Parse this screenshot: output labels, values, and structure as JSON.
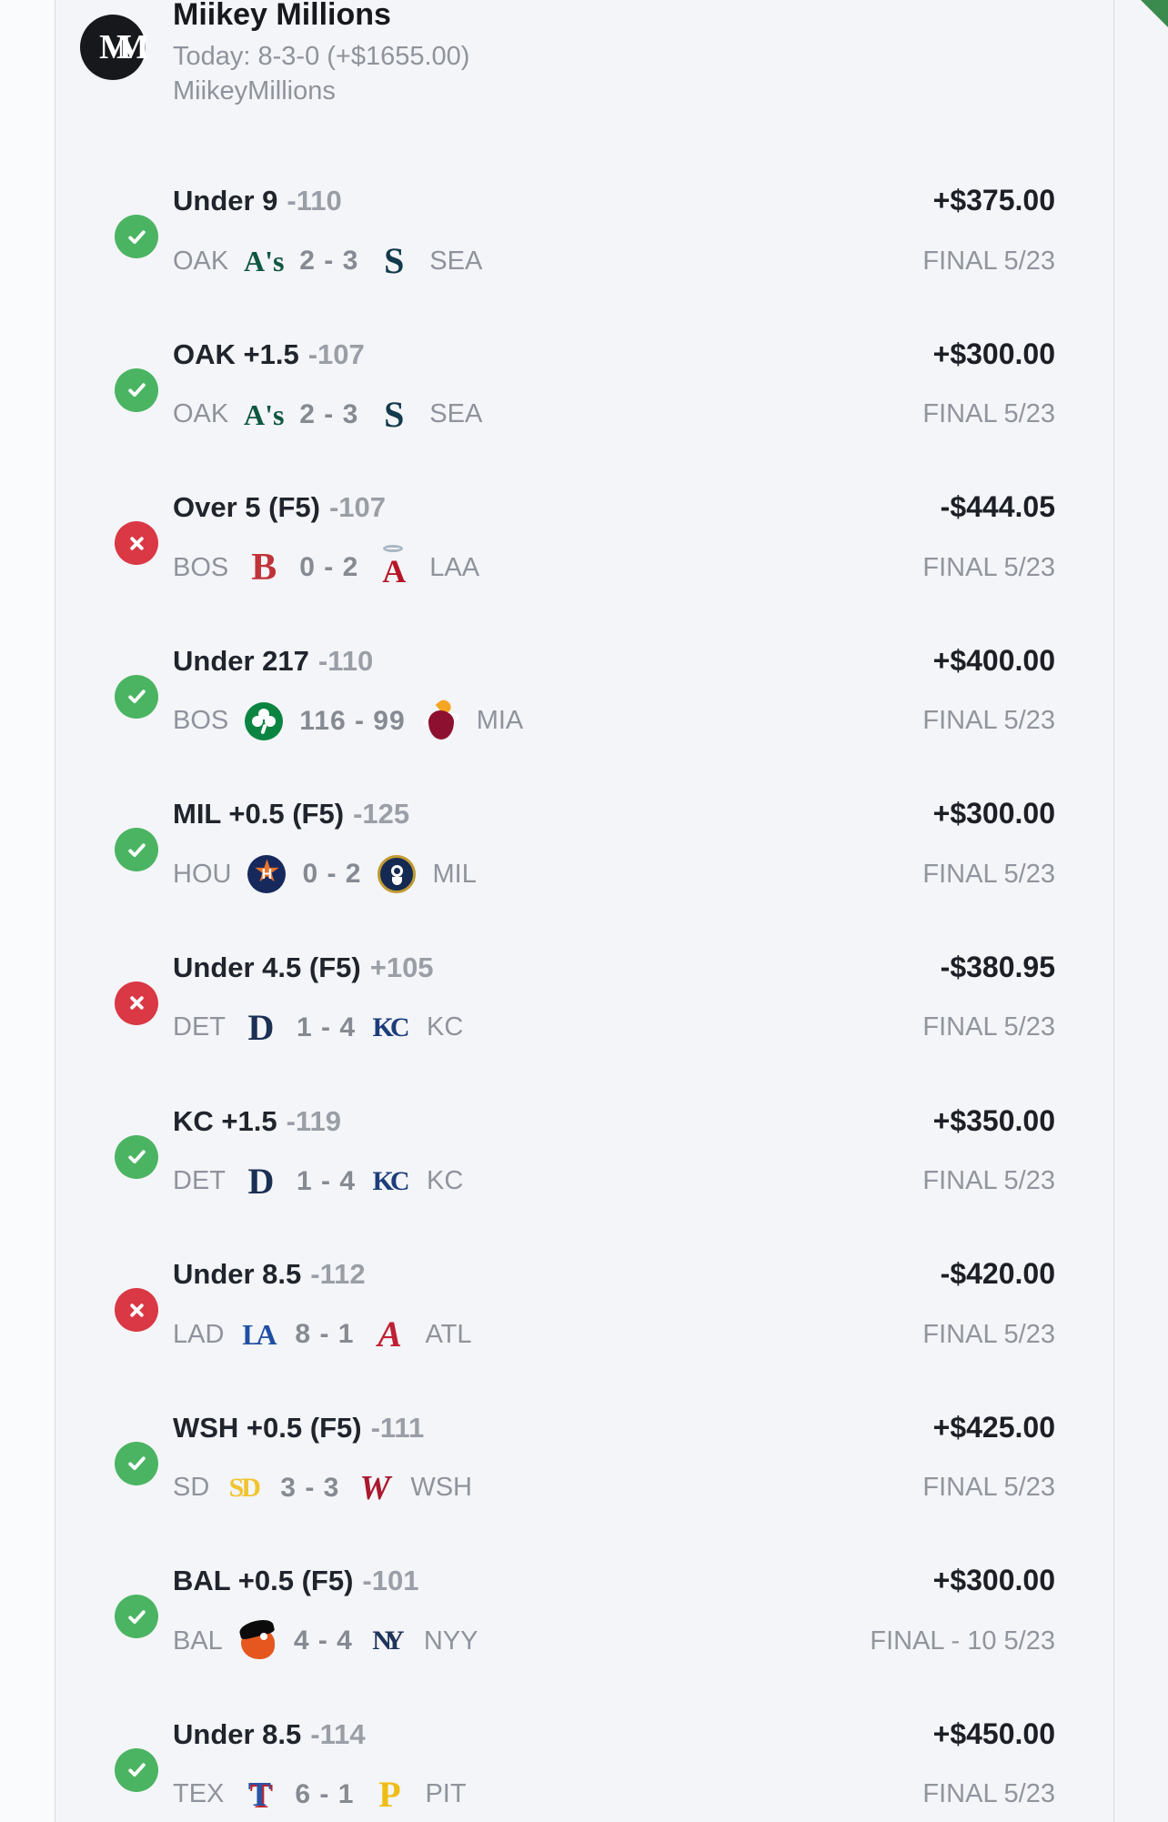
{
  "header": {
    "name": "Miikey Millions",
    "record_line": "Today: 8-3-0 (+$1655.00)",
    "username": "MiikeyMillions",
    "avatar_monogram": "MM"
  },
  "colors": {
    "background": "#f4f5f8",
    "win_green": "#4bb462",
    "loss_red": "#d93844",
    "corner_green": "#3b8a4e",
    "dark_text": "#20242c",
    "gray_text": "#8f939c"
  },
  "logos": {
    "athletics": {
      "type": "text",
      "glyph": "A's",
      "color": "#0f5740",
      "size": 32
    },
    "mariners": {
      "type": "text",
      "glyph": "S",
      "color": "#123a4c",
      "size": 40
    },
    "redsox": {
      "type": "text",
      "glyph": "B",
      "color": "#bf3339",
      "size": 42
    },
    "angels": {
      "type": "angels",
      "glyph": "A",
      "color": "#b71527",
      "halo": "#a9b6c4",
      "size": 36
    },
    "celtics": {
      "type": "celtics",
      "bg": "#0b8442",
      "fg": "#ffffff"
    },
    "heat": {
      "type": "heat",
      "ball": "#8e1030",
      "flame": "#f5a623",
      "ring": "#ffffff"
    },
    "astros": {
      "type": "astros",
      "bg": "#17295c",
      "star": "#e8742c",
      "letter": "H",
      "fg": "#ffffff"
    },
    "brewers": {
      "type": "brewers",
      "bg": "#152a52",
      "ring": "#c09a33",
      "fg": "#ffffff"
    },
    "tigers": {
      "type": "text",
      "glyph": "D",
      "color": "#1b3053",
      "size": 40
    },
    "royals": {
      "type": "text",
      "glyph": "KC",
      "color": "#1c3d7a",
      "size": 30,
      "spacing": "-4px"
    },
    "dodgers": {
      "type": "text",
      "glyph": "LA",
      "color": "#1f4fa3",
      "size": 32,
      "spacing": "-6px"
    },
    "braves": {
      "type": "text",
      "glyph": "A",
      "color": "#bf2134",
      "size": 40,
      "italic": true
    },
    "padres": {
      "type": "text",
      "glyph": "SD",
      "color": "#f0c430",
      "size": 30,
      "spacing": "-3px"
    },
    "nationals": {
      "type": "text",
      "glyph": "W",
      "color": "#a9192e",
      "size": 38,
      "italic": true
    },
    "orioles": {
      "type": "orioles",
      "body": "#e5571f",
      "cap": "#0b0b0b",
      "eye": "#ffffff"
    },
    "yankees": {
      "type": "text",
      "glyph": "NY",
      "color": "#20345c",
      "size": 30,
      "spacing": "-8px"
    },
    "rangers": {
      "type": "text",
      "glyph": "T",
      "color": "#2b54a5",
      "size": 38,
      "shadow": "2px 2px 0 #c0222c"
    },
    "pirates": {
      "type": "text",
      "glyph": "P",
      "color": "#eebd15",
      "size": 40
    }
  },
  "bets": [
    {
      "result": "win",
      "title": "Under 9",
      "odds": "-110",
      "amount": "+$375.00",
      "status": "FINAL 5/23",
      "away": "OAK",
      "home": "SEA",
      "score": "2 - 3",
      "away_logo": "athletics",
      "home_logo": "mariners"
    },
    {
      "result": "win",
      "title": "OAK +1.5",
      "odds": "-107",
      "amount": "+$300.00",
      "status": "FINAL 5/23",
      "away": "OAK",
      "home": "SEA",
      "score": "2 - 3",
      "away_logo": "athletics",
      "home_logo": "mariners"
    },
    {
      "result": "loss",
      "title": "Over 5 (F5)",
      "odds": "-107",
      "amount": "-$444.05",
      "status": "FINAL 5/23",
      "away": "BOS",
      "home": "LAA",
      "score": "0 - 2",
      "away_logo": "redsox",
      "home_logo": "angels"
    },
    {
      "result": "win",
      "title": "Under 217",
      "odds": "-110",
      "amount": "+$400.00",
      "status": "FINAL 5/23",
      "away": "BOS",
      "home": "MIA",
      "score": "116 - 99",
      "away_logo": "celtics",
      "home_logo": "heat"
    },
    {
      "result": "win",
      "title": "MIL +0.5 (F5)",
      "odds": "-125",
      "amount": "+$300.00",
      "status": "FINAL 5/23",
      "away": "HOU",
      "home": "MIL",
      "score": "0 - 2",
      "away_logo": "astros",
      "home_logo": "brewers"
    },
    {
      "result": "loss",
      "title": "Under 4.5 (F5)",
      "odds": "+105",
      "amount": "-$380.95",
      "status": "FINAL 5/23",
      "away": "DET",
      "home": "KC",
      "score": "1 - 4",
      "away_logo": "tigers",
      "home_logo": "royals"
    },
    {
      "result": "win",
      "title": "KC +1.5",
      "odds": "-119",
      "amount": "+$350.00",
      "status": "FINAL 5/23",
      "away": "DET",
      "home": "KC",
      "score": "1 - 4",
      "away_logo": "tigers",
      "home_logo": "royals"
    },
    {
      "result": "loss",
      "title": "Under 8.5",
      "odds": "-112",
      "amount": "-$420.00",
      "status": "FINAL 5/23",
      "away": "LAD",
      "home": "ATL",
      "score": "8 - 1",
      "away_logo": "dodgers",
      "home_logo": "braves"
    },
    {
      "result": "win",
      "title": "WSH +0.5 (F5)",
      "odds": "-111",
      "amount": "+$425.00",
      "status": "FINAL 5/23",
      "away": "SD",
      "home": "WSH",
      "score": "3 - 3",
      "away_logo": "padres",
      "home_logo": "nationals"
    },
    {
      "result": "win",
      "title": "BAL +0.5 (F5)",
      "odds": "-101",
      "amount": "+$300.00",
      "status": "FINAL - 10 5/23",
      "away": "BAL",
      "home": "NYY",
      "score": "4 - 4",
      "away_logo": "orioles",
      "home_logo": "yankees"
    },
    {
      "result": "win",
      "title": "Under 8.5",
      "odds": "-114",
      "amount": "+$450.00",
      "status": "FINAL 5/23",
      "away": "TEX",
      "home": "PIT",
      "score": "6 - 1",
      "away_logo": "rangers",
      "home_logo": "pirates"
    }
  ]
}
